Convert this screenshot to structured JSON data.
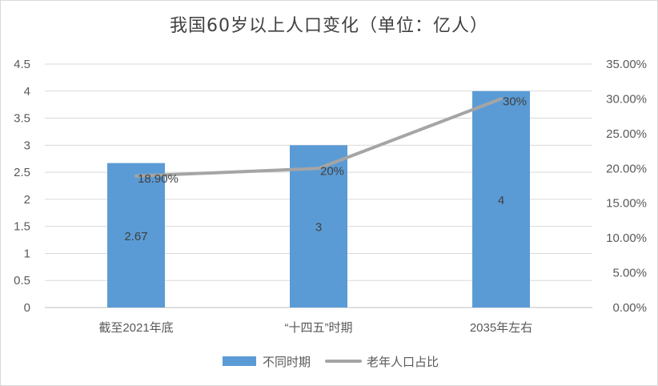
{
  "chart_data": {
    "type": "bar",
    "title": "我国60岁以上人口变化（单位：亿人）",
    "categories": [
      "截至2021年底",
      "“十四五”时期",
      "2035年左右"
    ],
    "series": [
      {
        "name": "不同时期",
        "type": "bar",
        "axis": "left",
        "values": [
          2.67,
          3,
          4
        ],
        "data_labels": [
          "2.67",
          "3",
          "4"
        ],
        "color": "#5b9bd5"
      },
      {
        "name": "老年人口占比",
        "type": "line",
        "axis": "right",
        "values": [
          0.189,
          0.2,
          0.3
        ],
        "data_labels": [
          "18.90%",
          "20%",
          "30%"
        ],
        "color": "#a5a5a5"
      }
    ],
    "y_left": {
      "min": 0,
      "max": 4.5,
      "ticks": [
        0,
        0.5,
        1,
        1.5,
        2,
        2.5,
        3,
        3.5,
        4,
        4.5
      ],
      "tick_labels": [
        "0",
        "0.5",
        "1",
        "1.5",
        "2",
        "2.5",
        "3",
        "3.5",
        "4",
        "4.5"
      ]
    },
    "y_right": {
      "min": 0,
      "max": 0.35,
      "ticks": [
        0,
        0.05,
        0.1,
        0.15,
        0.2,
        0.25,
        0.3,
        0.35
      ],
      "tick_labels": [
        "0.00%",
        "5.00%",
        "10.00%",
        "15.00%",
        "20.00%",
        "25.00%",
        "30.00%",
        "35.00%"
      ]
    },
    "grid": true,
    "legend_position": "bottom"
  }
}
